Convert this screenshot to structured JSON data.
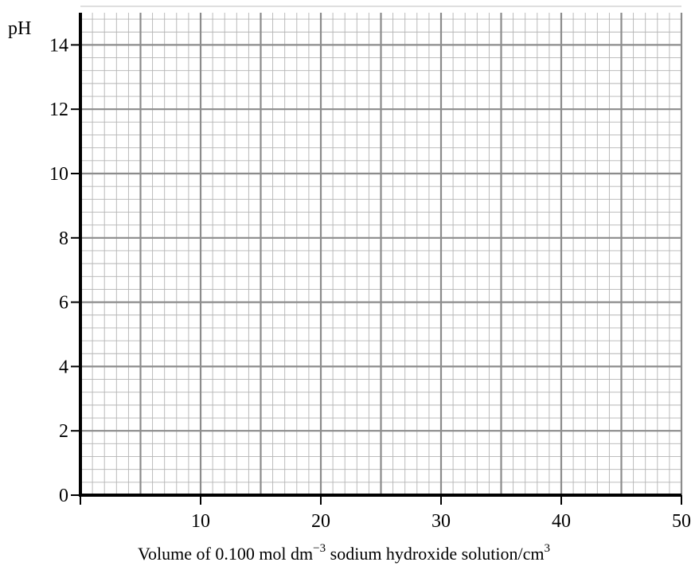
{
  "chart_data": {
    "type": "line",
    "title": "",
    "ylabel": "pH",
    "xlabel": {
      "prefix": "Volume of 0.100 mol dm",
      "exp1": "−3",
      "middle": " sodium hydroxide solution/cm",
      "exp2": "3"
    },
    "xlim": [
      0,
      50
    ],
    "ylim": [
      0,
      15
    ],
    "x_ticks": [
      10,
      20,
      30,
      40,
      50
    ],
    "y_ticks": [
      0,
      2,
      4,
      6,
      8,
      10,
      12,
      14
    ],
    "x_tick_labels": [
      "10",
      "20",
      "30",
      "40",
      "50"
    ],
    "y_tick_labels": [
      "0",
      "2",
      "4",
      "6",
      "8",
      "10",
      "12",
      "14"
    ],
    "grid": true,
    "grid_major_x": 5,
    "grid_major_y": 2,
    "grid_minor_x": 1,
    "grid_minor_y": 0.4,
    "series": []
  }
}
